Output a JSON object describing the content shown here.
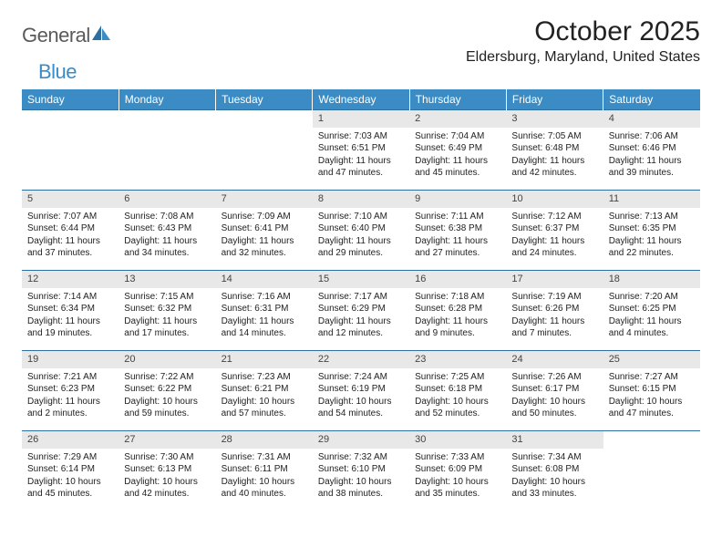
{
  "brand": {
    "text1": "General",
    "text2": "Blue",
    "text_color_gray": "#5a5a5a",
    "text_color_blue": "#3b8bc4"
  },
  "title": "October 2025",
  "location": "Eldersburg, Maryland, United States",
  "colors": {
    "header_bg": "#3b8bc4",
    "header_fg": "#ffffff",
    "daynum_bg": "#e8e8e8",
    "row_border": "#2f6fa0",
    "text": "#222222",
    "page_bg": "#ffffff"
  },
  "day_headers": [
    "Sunday",
    "Monday",
    "Tuesday",
    "Wednesday",
    "Thursday",
    "Friday",
    "Saturday"
  ],
  "weeks": [
    [
      {
        "day": "",
        "sunrise": "",
        "sunset": "",
        "daylight1": "",
        "daylight2": ""
      },
      {
        "day": "",
        "sunrise": "",
        "sunset": "",
        "daylight1": "",
        "daylight2": ""
      },
      {
        "day": "",
        "sunrise": "",
        "sunset": "",
        "daylight1": "",
        "daylight2": ""
      },
      {
        "day": "1",
        "sunrise": "Sunrise: 7:03 AM",
        "sunset": "Sunset: 6:51 PM",
        "daylight1": "Daylight: 11 hours",
        "daylight2": "and 47 minutes."
      },
      {
        "day": "2",
        "sunrise": "Sunrise: 7:04 AM",
        "sunset": "Sunset: 6:49 PM",
        "daylight1": "Daylight: 11 hours",
        "daylight2": "and 45 minutes."
      },
      {
        "day": "3",
        "sunrise": "Sunrise: 7:05 AM",
        "sunset": "Sunset: 6:48 PM",
        "daylight1": "Daylight: 11 hours",
        "daylight2": "and 42 minutes."
      },
      {
        "day": "4",
        "sunrise": "Sunrise: 7:06 AM",
        "sunset": "Sunset: 6:46 PM",
        "daylight1": "Daylight: 11 hours",
        "daylight2": "and 39 minutes."
      }
    ],
    [
      {
        "day": "5",
        "sunrise": "Sunrise: 7:07 AM",
        "sunset": "Sunset: 6:44 PM",
        "daylight1": "Daylight: 11 hours",
        "daylight2": "and 37 minutes."
      },
      {
        "day": "6",
        "sunrise": "Sunrise: 7:08 AM",
        "sunset": "Sunset: 6:43 PM",
        "daylight1": "Daylight: 11 hours",
        "daylight2": "and 34 minutes."
      },
      {
        "day": "7",
        "sunrise": "Sunrise: 7:09 AM",
        "sunset": "Sunset: 6:41 PM",
        "daylight1": "Daylight: 11 hours",
        "daylight2": "and 32 minutes."
      },
      {
        "day": "8",
        "sunrise": "Sunrise: 7:10 AM",
        "sunset": "Sunset: 6:40 PM",
        "daylight1": "Daylight: 11 hours",
        "daylight2": "and 29 minutes."
      },
      {
        "day": "9",
        "sunrise": "Sunrise: 7:11 AM",
        "sunset": "Sunset: 6:38 PM",
        "daylight1": "Daylight: 11 hours",
        "daylight2": "and 27 minutes."
      },
      {
        "day": "10",
        "sunrise": "Sunrise: 7:12 AM",
        "sunset": "Sunset: 6:37 PM",
        "daylight1": "Daylight: 11 hours",
        "daylight2": "and 24 minutes."
      },
      {
        "day": "11",
        "sunrise": "Sunrise: 7:13 AM",
        "sunset": "Sunset: 6:35 PM",
        "daylight1": "Daylight: 11 hours",
        "daylight2": "and 22 minutes."
      }
    ],
    [
      {
        "day": "12",
        "sunrise": "Sunrise: 7:14 AM",
        "sunset": "Sunset: 6:34 PM",
        "daylight1": "Daylight: 11 hours",
        "daylight2": "and 19 minutes."
      },
      {
        "day": "13",
        "sunrise": "Sunrise: 7:15 AM",
        "sunset": "Sunset: 6:32 PM",
        "daylight1": "Daylight: 11 hours",
        "daylight2": "and 17 minutes."
      },
      {
        "day": "14",
        "sunrise": "Sunrise: 7:16 AM",
        "sunset": "Sunset: 6:31 PM",
        "daylight1": "Daylight: 11 hours",
        "daylight2": "and 14 minutes."
      },
      {
        "day": "15",
        "sunrise": "Sunrise: 7:17 AM",
        "sunset": "Sunset: 6:29 PM",
        "daylight1": "Daylight: 11 hours",
        "daylight2": "and 12 minutes."
      },
      {
        "day": "16",
        "sunrise": "Sunrise: 7:18 AM",
        "sunset": "Sunset: 6:28 PM",
        "daylight1": "Daylight: 11 hours",
        "daylight2": "and 9 minutes."
      },
      {
        "day": "17",
        "sunrise": "Sunrise: 7:19 AM",
        "sunset": "Sunset: 6:26 PM",
        "daylight1": "Daylight: 11 hours",
        "daylight2": "and 7 minutes."
      },
      {
        "day": "18",
        "sunrise": "Sunrise: 7:20 AM",
        "sunset": "Sunset: 6:25 PM",
        "daylight1": "Daylight: 11 hours",
        "daylight2": "and 4 minutes."
      }
    ],
    [
      {
        "day": "19",
        "sunrise": "Sunrise: 7:21 AM",
        "sunset": "Sunset: 6:23 PM",
        "daylight1": "Daylight: 11 hours",
        "daylight2": "and 2 minutes."
      },
      {
        "day": "20",
        "sunrise": "Sunrise: 7:22 AM",
        "sunset": "Sunset: 6:22 PM",
        "daylight1": "Daylight: 10 hours",
        "daylight2": "and 59 minutes."
      },
      {
        "day": "21",
        "sunrise": "Sunrise: 7:23 AM",
        "sunset": "Sunset: 6:21 PM",
        "daylight1": "Daylight: 10 hours",
        "daylight2": "and 57 minutes."
      },
      {
        "day": "22",
        "sunrise": "Sunrise: 7:24 AM",
        "sunset": "Sunset: 6:19 PM",
        "daylight1": "Daylight: 10 hours",
        "daylight2": "and 54 minutes."
      },
      {
        "day": "23",
        "sunrise": "Sunrise: 7:25 AM",
        "sunset": "Sunset: 6:18 PM",
        "daylight1": "Daylight: 10 hours",
        "daylight2": "and 52 minutes."
      },
      {
        "day": "24",
        "sunrise": "Sunrise: 7:26 AM",
        "sunset": "Sunset: 6:17 PM",
        "daylight1": "Daylight: 10 hours",
        "daylight2": "and 50 minutes."
      },
      {
        "day": "25",
        "sunrise": "Sunrise: 7:27 AM",
        "sunset": "Sunset: 6:15 PM",
        "daylight1": "Daylight: 10 hours",
        "daylight2": "and 47 minutes."
      }
    ],
    [
      {
        "day": "26",
        "sunrise": "Sunrise: 7:29 AM",
        "sunset": "Sunset: 6:14 PM",
        "daylight1": "Daylight: 10 hours",
        "daylight2": "and 45 minutes."
      },
      {
        "day": "27",
        "sunrise": "Sunrise: 7:30 AM",
        "sunset": "Sunset: 6:13 PM",
        "daylight1": "Daylight: 10 hours",
        "daylight2": "and 42 minutes."
      },
      {
        "day": "28",
        "sunrise": "Sunrise: 7:31 AM",
        "sunset": "Sunset: 6:11 PM",
        "daylight1": "Daylight: 10 hours",
        "daylight2": "and 40 minutes."
      },
      {
        "day": "29",
        "sunrise": "Sunrise: 7:32 AM",
        "sunset": "Sunset: 6:10 PM",
        "daylight1": "Daylight: 10 hours",
        "daylight2": "and 38 minutes."
      },
      {
        "day": "30",
        "sunrise": "Sunrise: 7:33 AM",
        "sunset": "Sunset: 6:09 PM",
        "daylight1": "Daylight: 10 hours",
        "daylight2": "and 35 minutes."
      },
      {
        "day": "31",
        "sunrise": "Sunrise: 7:34 AM",
        "sunset": "Sunset: 6:08 PM",
        "daylight1": "Daylight: 10 hours",
        "daylight2": "and 33 minutes."
      },
      {
        "day": "",
        "sunrise": "",
        "sunset": "",
        "daylight1": "",
        "daylight2": ""
      }
    ]
  ]
}
